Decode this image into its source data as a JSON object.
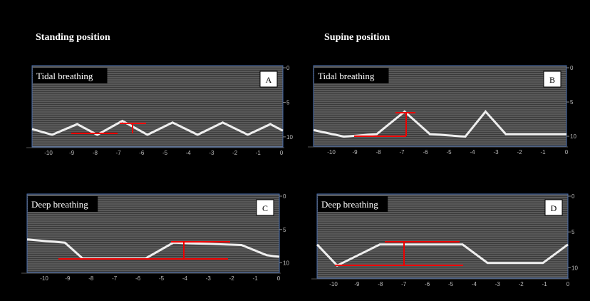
{
  "headers": [
    "Standing position",
    "Supine position"
  ],
  "panels": [
    {
      "label": "Tidal breathing",
      "letter": "A",
      "x_ticks": [
        -10,
        -9,
        -8,
        -7,
        -6,
        -5,
        -4,
        -3,
        -2,
        -1,
        0
      ],
      "y_ticks": [
        0,
        5,
        10
      ]
    },
    {
      "label": "Tidal breathing",
      "letter": "B",
      "x_ticks": [
        -10,
        -9,
        -8,
        -7,
        -6,
        -5,
        -4,
        -3,
        -2,
        -1,
        0
      ],
      "y_ticks": [
        0,
        5,
        10
      ]
    },
    {
      "label": "Deep breathing",
      "letter": "C",
      "x_ticks": [
        -10,
        -9,
        -8,
        -7,
        -6,
        -5,
        -4,
        -3,
        -2,
        -1,
        0
      ],
      "y_ticks": [
        0,
        5,
        10
      ]
    },
    {
      "label": "Deep breathing",
      "letter": "D",
      "x_ticks": [
        -10,
        -9,
        -8,
        -7,
        -6,
        -5,
        -4,
        -3,
        -2,
        -1,
        0
      ],
      "y_ticks": [
        0,
        5,
        10
      ]
    }
  ]
}
